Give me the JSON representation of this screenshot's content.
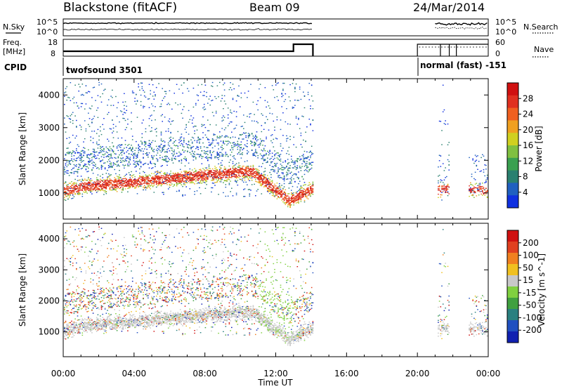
{
  "header": {
    "title": "Blackstone (fitACF)",
    "beam": "Beam 09",
    "date": "24/Mar/2014"
  },
  "strip": {
    "nsky_label": "N.Sky",
    "nsearch_label": "N.Search",
    "log_top": "10^5",
    "log_bottom": "10^0",
    "freq_label_1": "Freq.",
    "freq_label_2": "[MHz]",
    "freq_ticks": [
      "18",
      "8"
    ],
    "nave_label": "Nave",
    "nave_ticks": [
      "60",
      "0"
    ],
    "cpid_label": "CPID",
    "cpid_left": "twofsound 3501",
    "cpid_right": "normal (fast) -151"
  },
  "chart_data": [
    {
      "type": "heatmap",
      "name": "power-panel",
      "ylabel": "Slant Range [km]",
      "xlabel": "",
      "x_ticks": [
        "00:00",
        "04:00",
        "08:00",
        "12:00",
        "16:00",
        "20:00",
        "00:00"
      ],
      "x_range_hours": [
        0,
        24
      ],
      "y_ticks": [
        1000,
        2000,
        3000,
        4000
      ],
      "y_range": [
        200,
        4500
      ],
      "colorbar": {
        "label": "Power [dB]",
        "ticks": [
          "4",
          "8",
          "12",
          "16",
          "20",
          "24",
          "28"
        ],
        "colors": [
          "#1030e0",
          "#2060c0",
          "#2a8070",
          "#3aa050",
          "#80c040",
          "#d0d020",
          "#f0a020",
          "#f06020",
          "#e03020",
          "#d01010"
        ]
      }
    },
    {
      "type": "heatmap",
      "name": "velocity-panel",
      "ylabel": "Slant Range [km]",
      "xlabel": "Time UT",
      "x_ticks": [
        "00:00",
        "04:00",
        "08:00",
        "12:00",
        "16:00",
        "20:00",
        "00:00"
      ],
      "x_range_hours": [
        0,
        24
      ],
      "y_ticks": [
        1000,
        2000,
        3000,
        4000
      ],
      "y_range": [
        200,
        4500
      ],
      "colorbar": {
        "label": "Velocity [m s^-1]",
        "ticks": [
          "200",
          "100",
          "50",
          "15",
          "-15",
          "-50",
          "-100",
          "-200"
        ],
        "colors": [
          "#1020b0",
          "#2050c0",
          "#2a8080",
          "#40a040",
          "#80d040",
          "#c8c8c8",
          "#f0c020",
          "#f08020",
          "#e04020",
          "#d01010"
        ]
      }
    }
  ]
}
